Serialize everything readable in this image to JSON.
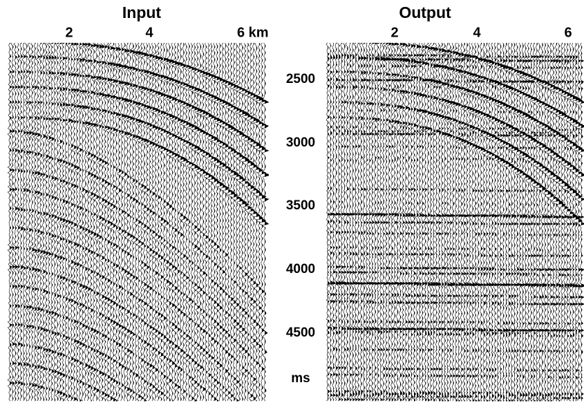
{
  "panels": [
    {
      "title": "Input",
      "xticks": [
        "2",
        "4",
        "6 km"
      ]
    },
    {
      "title": "Output",
      "xticks": [
        "2",
        "4",
        "6"
      ]
    }
  ],
  "time_axis": {
    "ticks": [
      "2500",
      "3000",
      "3500",
      "4000",
      "4500"
    ],
    "unit": "ms"
  }
}
